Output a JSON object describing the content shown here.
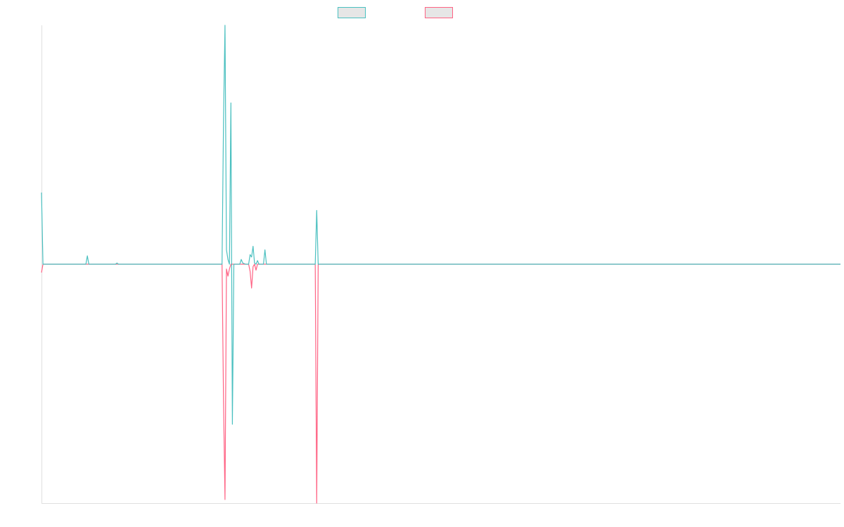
{
  "colors": {
    "series_1": "#4bc0c0",
    "series_2": "#ff6384",
    "axis": "#e0e0e0"
  },
  "chart_data": {
    "type": "line",
    "title": "",
    "xlabel": "",
    "ylabel": "",
    "legend": "top-center",
    "grid": false,
    "xlim": [
      0,
      540
    ],
    "ylim": [
      -1000,
      1000
    ],
    "series": [
      {
        "color": "#4bc0c0",
        "points": [
          [
            0,
            300
          ],
          [
            1,
            0
          ],
          [
            30,
            0
          ],
          [
            31,
            35
          ],
          [
            32,
            0
          ],
          [
            50,
            0
          ],
          [
            51,
            5
          ],
          [
            52,
            0
          ],
          [
            122,
            0
          ],
          [
            123,
            600
          ],
          [
            124,
            1000
          ],
          [
            125,
            60
          ],
          [
            126,
            20
          ],
          [
            127,
            0
          ],
          [
            128,
            675
          ],
          [
            129,
            -670
          ],
          [
            130,
            0
          ],
          [
            134,
            0
          ],
          [
            135,
            20
          ],
          [
            136,
            5
          ],
          [
            138,
            0
          ],
          [
            140,
            0
          ],
          [
            141,
            40
          ],
          [
            142,
            30
          ],
          [
            143,
            75
          ],
          [
            144,
            5
          ],
          [
            145,
            0
          ],
          [
            146,
            15
          ],
          [
            147,
            0
          ],
          [
            150,
            0
          ],
          [
            151,
            60
          ],
          [
            152,
            0
          ],
          [
            185,
            0
          ],
          [
            186,
            225
          ],
          [
            187,
            0
          ],
          [
            540,
            0
          ]
        ]
      },
      {
        "color": "#ff6384",
        "points": [
          [
            0,
            -35
          ],
          [
            1,
            0
          ],
          [
            122,
            0
          ],
          [
            123,
            -570
          ],
          [
            124,
            -985
          ],
          [
            125,
            -20
          ],
          [
            126,
            -50
          ],
          [
            127,
            -20
          ],
          [
            128,
            0
          ],
          [
            140,
            0
          ],
          [
            141,
            -30
          ],
          [
            142,
            -100
          ],
          [
            143,
            -10
          ],
          [
            144,
            0
          ],
          [
            145,
            -25
          ],
          [
            146,
            0
          ],
          [
            185,
            0
          ],
          [
            186,
            -1000
          ],
          [
            187,
            0
          ],
          [
            540,
            0
          ]
        ]
      }
    ]
  }
}
